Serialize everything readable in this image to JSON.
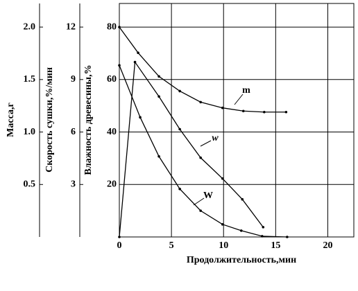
{
  "chart_data": {
    "type": "line",
    "xlabel": "Продолжительность,мин",
    "ylabel": "Влажность древесины,%",
    "y2label": "Скорость сушки,%/мин",
    "y3label": "Масса,г",
    "xlim": [
      0,
      22.5
    ],
    "xticks": [
      0,
      5,
      10,
      15,
      20
    ],
    "ylim": [
      0,
      89
    ],
    "yticks": [
      20,
      40,
      60,
      80
    ],
    "y2lim": [
      0,
      13.35
    ],
    "y2ticks": [
      3,
      6,
      9,
      12
    ],
    "y3lim": [
      0,
      2.225
    ],
    "y3ticks": [
      {
        "value": 0.5,
        "label": "0.5"
      },
      {
        "value": 1,
        "label": "1.0"
      },
      {
        "value": 1.5,
        "label": "1.5"
      },
      {
        "value": 2,
        "label": "2.0"
      }
    ],
    "grid": true,
    "series": [
      {
        "name": "m",
        "axis": "y3",
        "color": "#000000",
        "x": [
          0,
          1.8,
          3.8,
          5.8,
          7.8,
          9.9,
          11.9,
          13.9,
          16.0
        ],
        "values": [
          2.0,
          1.755,
          1.53,
          1.39,
          1.285,
          1.23,
          1.2,
          1.19,
          1.19
        ]
      },
      {
        "name": "w",
        "axis": "y2",
        "color": "#000000",
        "x": [
          0,
          1.5,
          3.8,
          5.8,
          7.8,
          9.9,
          11.8,
          13.8
        ],
        "values": [
          0,
          10.0,
          8.03,
          6.16,
          4.53,
          3.34,
          2.15,
          0.56
        ]
      },
      {
        "name": "W",
        "axis": "y",
        "color": "#000000",
        "x": [
          0,
          2,
          3.8,
          5.8,
          7.8,
          9.9,
          11.7,
          13.7,
          16.1
        ],
        "values": [
          65.4,
          45.6,
          30.7,
          18.3,
          10,
          4.8,
          2.4,
          0.3,
          0
        ]
      }
    ]
  }
}
